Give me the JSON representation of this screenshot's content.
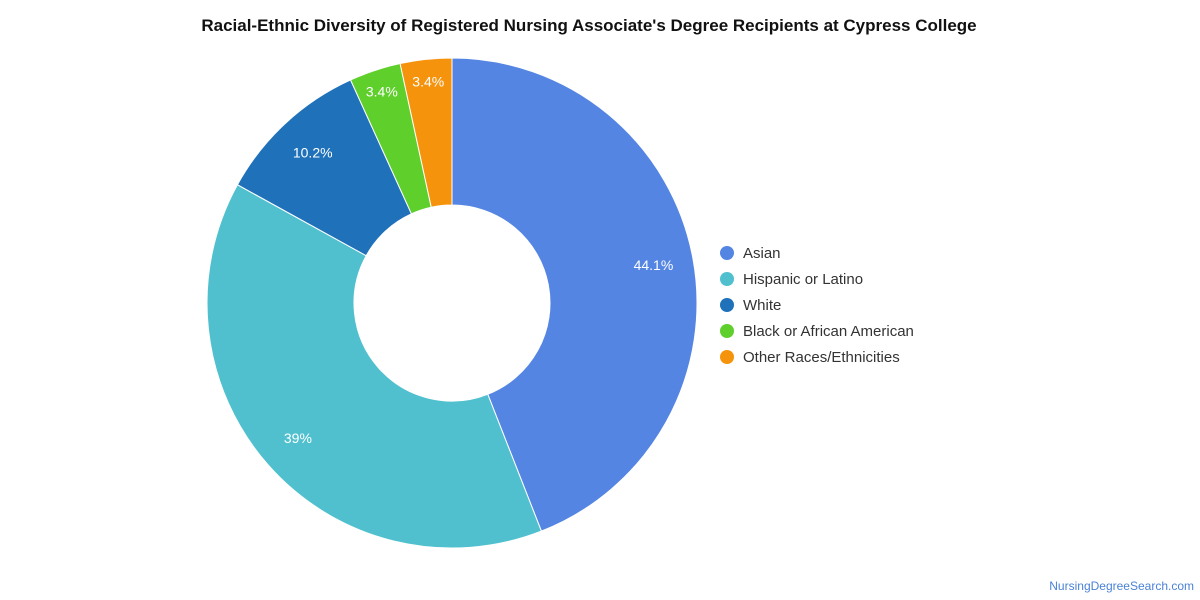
{
  "chart_data": {
    "type": "pie",
    "style": "donut",
    "title": "Racial-Ethnic Diversity of Registered Nursing Associate's Degree Recipients at Cypress College",
    "legend_position": "right",
    "slices": [
      {
        "label": "Asian",
        "value": 44.1,
        "display": "44.1%",
        "color": "#5485e2"
      },
      {
        "label": "Hispanic or Latino",
        "value": 39.0,
        "display": "39%",
        "color": "#50c0cf"
      },
      {
        "label": "White",
        "value": 10.2,
        "display": "10.2%",
        "color": "#1f71ba"
      },
      {
        "label": "Black or African American",
        "value": 3.4,
        "display": "3.4%",
        "color": "#5fcf2c"
      },
      {
        "label": "Other Races/Ethnicities",
        "value": 3.4,
        "display": "3.4%",
        "color": "#f6930c"
      }
    ]
  },
  "footer": {
    "source": "NursingDegreeSearch.com"
  }
}
